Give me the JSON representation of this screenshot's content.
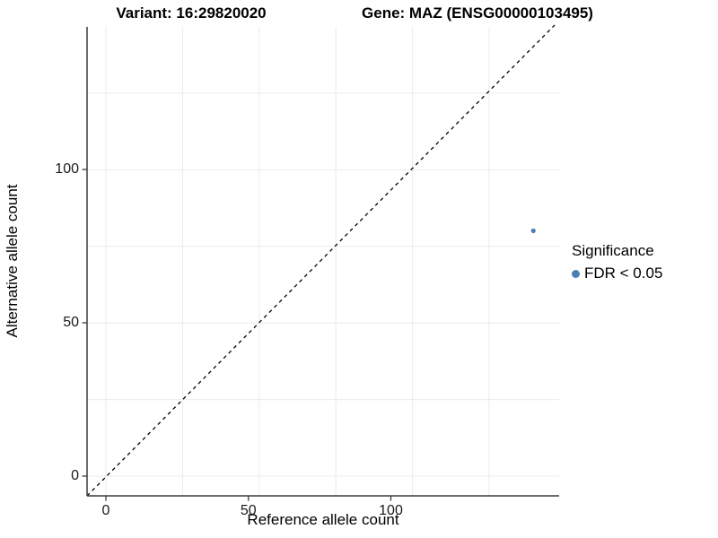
{
  "titles": {
    "variant": "Variant: 16:29820020",
    "gene": "Gene: MAZ (ENSG00000103495)"
  },
  "chart_data": {
    "type": "scatter",
    "xlabel": "Reference allele count",
    "ylabel": "Alternative allele count",
    "x_ticks": [
      "0",
      "50",
      "100"
    ],
    "x_tick_values": [
      0,
      50,
      100
    ],
    "y_ticks": [
      "0",
      "50",
      "100"
    ],
    "y_tick_values": [
      0,
      50,
      100
    ],
    "xlim": [
      -6.5,
      159
    ],
    "ylim": [
      -6.5,
      146.5
    ],
    "grid": "on",
    "points": [
      {
        "x": 150,
        "y": 80,
        "series": "FDR < 0.05"
      }
    ],
    "reference_line": {
      "type": "identity y = x",
      "style": "dashed",
      "color": "#000000"
    },
    "legend": {
      "position": "right",
      "title": "Significance",
      "entries": [
        {
          "label": "FDR < 0.05",
          "color": "#4d7eb3"
        }
      ]
    },
    "colors": {
      "point": "#4d7eb3",
      "grid": "#ebebeb",
      "axis": "#3c3c3c",
      "background": "#ffffff"
    }
  }
}
